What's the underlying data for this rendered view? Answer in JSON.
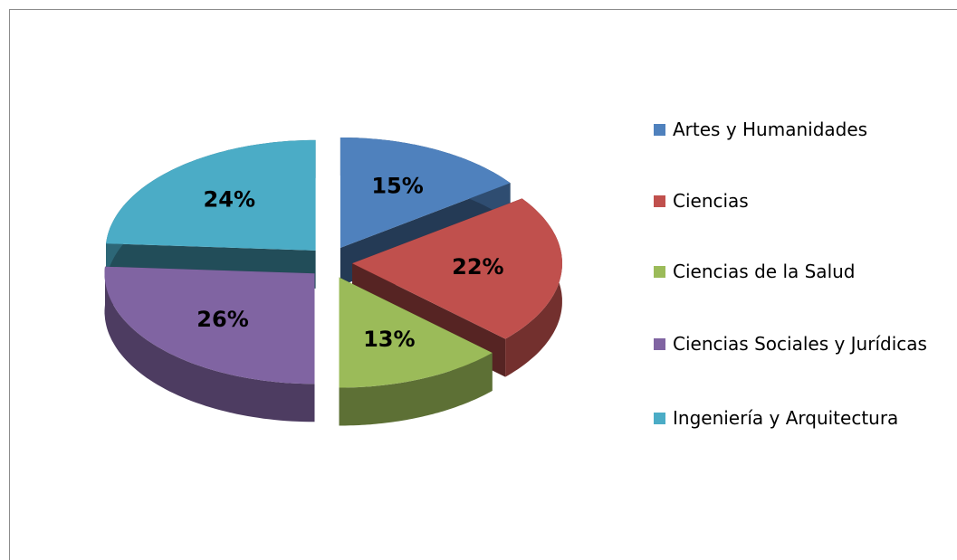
{
  "chart_data": {
    "type": "pie",
    "categories": [
      "Artes y Humanidades",
      "Ciencias",
      "Ciencias de la Salud",
      "Ciencias Sociales y Jurídicas",
      "Ingeniería y Arquitectura"
    ],
    "values": [
      15,
      22,
      13,
      26,
      24
    ],
    "value_labels": [
      "15%",
      "22%",
      "13%",
      "26%",
      "24%"
    ],
    "colors": [
      "#4f81bd",
      "#c0504d",
      "#9bbb59",
      "#8064a2",
      "#4bacc6"
    ],
    "legend": "right"
  }
}
